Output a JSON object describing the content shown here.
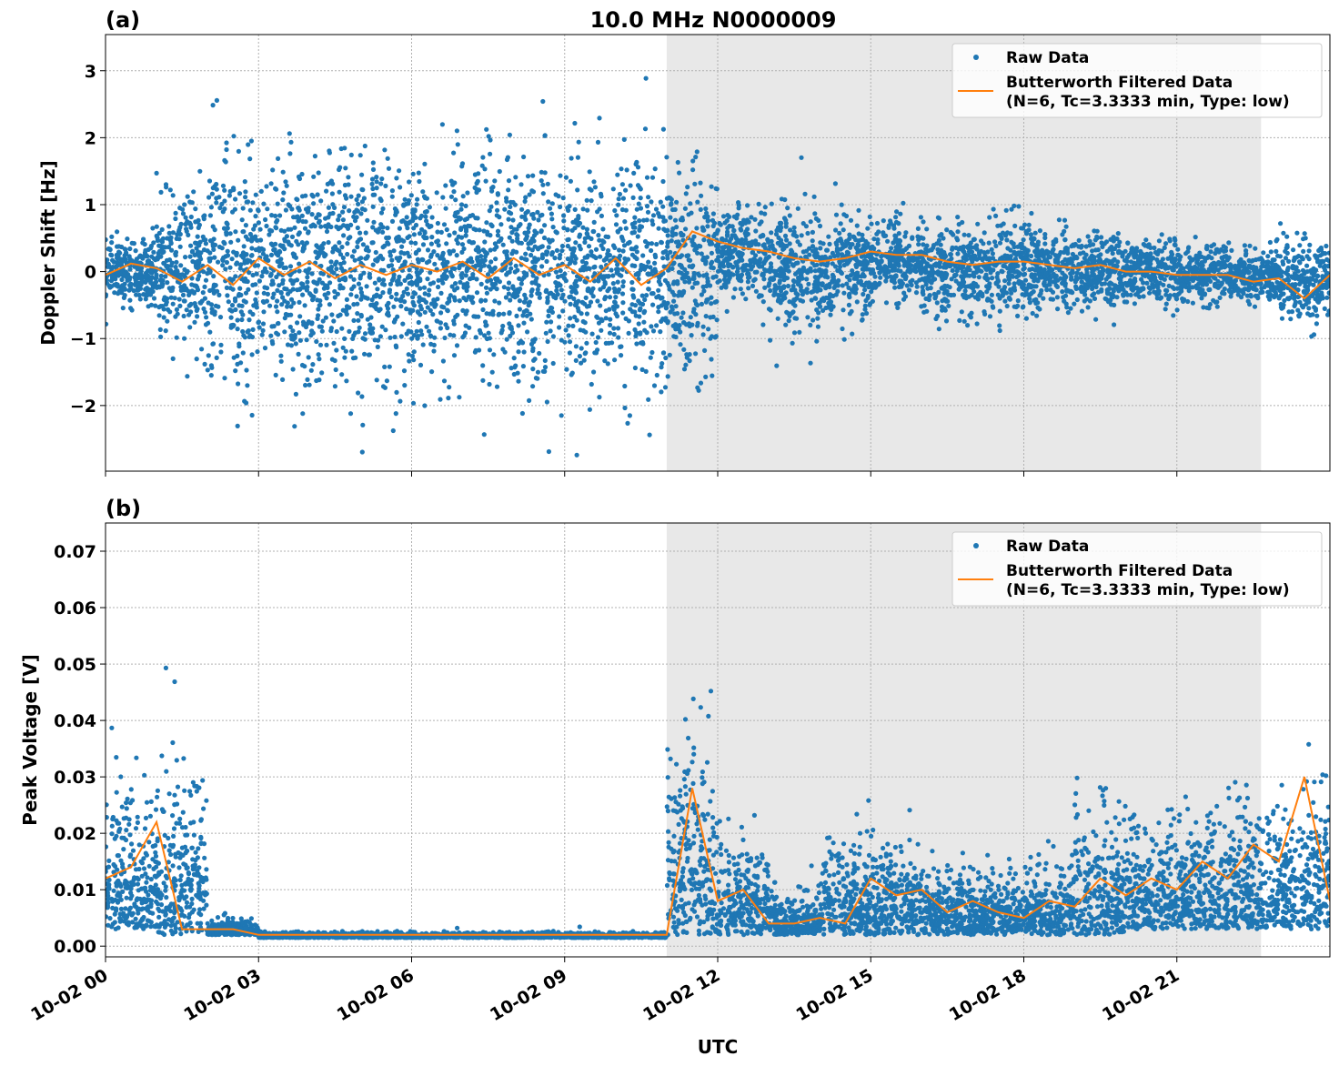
{
  "title": "10.0 MHz N0000009",
  "legend": {
    "raw": "Raw Data",
    "filtered_line1": "Butterworth Filtered Data",
    "filtered_line2": "(N=6, Tc=3.3333 min, Type: low)"
  },
  "xlabel": "UTC",
  "x_ticks": [
    "10-02 00",
    "10-02 03",
    "10-02 06",
    "10-02 09",
    "10-02 12",
    "10-02 15",
    "10-02 18",
    "10-02 21"
  ],
  "x_tick_hours": [
    0,
    3,
    6,
    9,
    12,
    15,
    18,
    21
  ],
  "xlim_hours": [
    0,
    24
  ],
  "shaded_span_hours": [
    11.0,
    22.65
  ],
  "colors": {
    "raw": "#1f77b4",
    "filtered": "#ff7f0e",
    "shade": "#e8e8e8"
  },
  "chart_data": [
    {
      "type": "scatter",
      "panel_label": "(a)",
      "ylabel": "Doppler Shift [Hz]",
      "ylim": [
        -2.98,
        3.54
      ],
      "y_ticks": [
        -2,
        -1,
        0,
        1,
        2,
        3
      ],
      "y_tick_labels": [
        "−2",
        "−1",
        "0",
        "1",
        "2",
        "3"
      ],
      "grid": true,
      "legend_position": "top-right",
      "raw_hourly_range": [
        [
          -0.5,
          0.5
        ],
        [
          -1.2,
          1.2
        ],
        [
          -1.8,
          1.8
        ],
        [
          -1.8,
          1.8
        ],
        [
          -1.8,
          1.8
        ],
        [
          -1.8,
          1.8
        ],
        [
          -1.8,
          1.8
        ],
        [
          -1.8,
          1.8
        ],
        [
          -1.8,
          1.8
        ],
        [
          -1.8,
          1.8
        ],
        [
          -1.8,
          1.8
        ],
        [
          -1.6,
          1.6
        ],
        [
          -0.5,
          1.0
        ],
        [
          -1.0,
          1.0
        ],
        [
          -0.8,
          0.9
        ],
        [
          -0.5,
          0.8
        ],
        [
          -0.7,
          0.7
        ],
        [
          -0.7,
          0.8
        ],
        [
          -0.6,
          0.7
        ],
        [
          -0.6,
          0.6
        ],
        [
          -0.5,
          0.5
        ],
        [
          -0.5,
          0.4
        ],
        [
          -0.5,
          0.4
        ],
        [
          -0.8,
          0.5
        ]
      ],
      "filtered": {
        "step_hours": 0.5,
        "values": [
          -0.05,
          0.12,
          0.05,
          -0.15,
          0.1,
          -0.2,
          0.2,
          -0.05,
          0.15,
          -0.1,
          0.1,
          -0.05,
          0.1,
          0.0,
          0.15,
          -0.1,
          0.2,
          -0.05,
          0.1,
          -0.15,
          0.2,
          -0.2,
          0.05,
          0.6,
          0.45,
          0.35,
          0.3,
          0.2,
          0.15,
          0.2,
          0.3,
          0.25,
          0.25,
          0.15,
          0.1,
          0.15,
          0.15,
          0.1,
          0.05,
          0.1,
          0.0,
          0.0,
          -0.05,
          -0.05,
          -0.05,
          -0.15,
          -0.1,
          -0.4,
          -0.05
        ]
      }
    },
    {
      "type": "scatter",
      "panel_label": "(b)",
      "ylabel": "Peak Voltage [V]",
      "ylim": [
        -0.0019,
        0.075
      ],
      "y_ticks": [
        0,
        0.01,
        0.02,
        0.03,
        0.04,
        0.05,
        0.06,
        0.07
      ],
      "y_tick_labels": [
        "0.00",
        "0.01",
        "0.02",
        "0.03",
        "0.04",
        "0.05",
        "0.06",
        "0.07"
      ],
      "grid": true,
      "legend_position": "top-right",
      "raw_hourly_range": [
        [
          0.003,
          0.03
        ],
        [
          0.002,
          0.035
        ],
        [
          0.002,
          0.005
        ],
        [
          0.0015,
          0.0025
        ],
        [
          0.0015,
          0.0025
        ],
        [
          0.0015,
          0.0025
        ],
        [
          0.0015,
          0.0025
        ],
        [
          0.0015,
          0.0025
        ],
        [
          0.0015,
          0.0025
        ],
        [
          0.0015,
          0.0025
        ],
        [
          0.0015,
          0.0025
        ],
        [
          0.002,
          0.04
        ],
        [
          0.002,
          0.022
        ],
        [
          0.002,
          0.01
        ],
        [
          0.002,
          0.02
        ],
        [
          0.002,
          0.02
        ],
        [
          0.002,
          0.015
        ],
        [
          0.002,
          0.015
        ],
        [
          0.002,
          0.015
        ],
        [
          0.002,
          0.025
        ],
        [
          0.003,
          0.025
        ],
        [
          0.003,
          0.025
        ],
        [
          0.003,
          0.03
        ],
        [
          0.003,
          0.03
        ]
      ],
      "filtered": {
        "step_hours": 0.5,
        "values": [
          0.012,
          0.014,
          0.022,
          0.003,
          0.003,
          0.003,
          0.002,
          0.002,
          0.002,
          0.002,
          0.002,
          0.002,
          0.002,
          0.002,
          0.002,
          0.002,
          0.002,
          0.002,
          0.002,
          0.002,
          0.002,
          0.002,
          0.002,
          0.028,
          0.008,
          0.01,
          0.004,
          0.004,
          0.005,
          0.004,
          0.012,
          0.009,
          0.01,
          0.006,
          0.008,
          0.006,
          0.005,
          0.008,
          0.007,
          0.012,
          0.009,
          0.012,
          0.01,
          0.015,
          0.012,
          0.018,
          0.015,
          0.03,
          0.008
        ]
      }
    }
  ]
}
